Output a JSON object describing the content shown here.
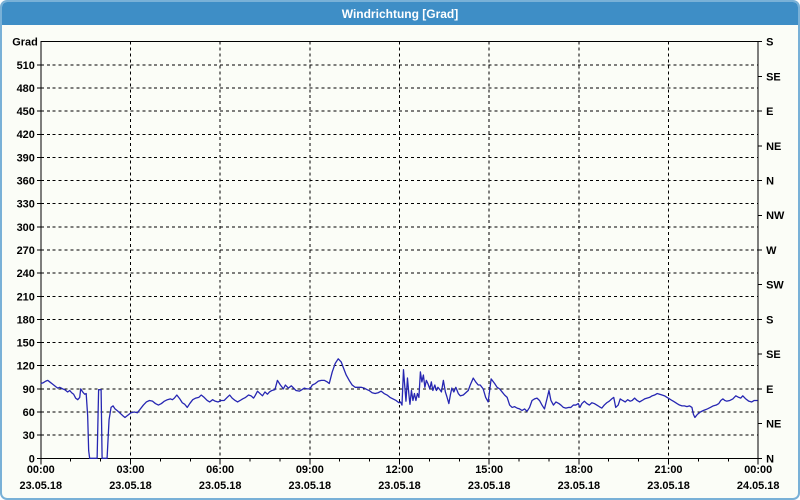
{
  "window": {
    "title": "Windrichtung [Grad]"
  },
  "colors": {
    "titlebar": "#3e8ec6",
    "title_text": "#ffffff",
    "window_border": "#79b1d7",
    "background": "#fbfdf7",
    "grid": "#000000",
    "series_line": "#2626b2"
  },
  "chart_data": {
    "type": "line",
    "title": "Windrichtung [Grad]",
    "grid": "dashed-black",
    "legend": "none",
    "x_axis": {
      "min_minutes": 0,
      "max_minutes": 1440,
      "minor_tick_step_minutes": 60,
      "major_ticks": [
        {
          "minutes": 0,
          "time": "00:00",
          "date": "23.05.18"
        },
        {
          "minutes": 180,
          "time": "03:00",
          "date": "23.05.18"
        },
        {
          "minutes": 360,
          "time": "06:00",
          "date": "23.05.18"
        },
        {
          "minutes": 540,
          "time": "09:00",
          "date": "23.05.18"
        },
        {
          "minutes": 720,
          "time": "12:00",
          "date": "23.05.18"
        },
        {
          "minutes": 900,
          "time": "15:00",
          "date": "23.05.18"
        },
        {
          "minutes": 1080,
          "time": "18:00",
          "date": "23.05.18"
        },
        {
          "minutes": 1260,
          "time": "21:00",
          "date": "23.05.18"
        },
        {
          "minutes": 1440,
          "time": "00:00",
          "date": "24.05.18"
        }
      ]
    },
    "y_left": {
      "unit_label": "Grad",
      "min": 0,
      "max": 540,
      "tick_step": 30,
      "tick_values": [
        0,
        30,
        60,
        90,
        120,
        150,
        180,
        210,
        240,
        270,
        300,
        330,
        360,
        390,
        420,
        450,
        480,
        510
      ]
    },
    "y_right": {
      "ticks": [
        {
          "value": 0,
          "label": "N"
        },
        {
          "value": 45,
          "label": "NE"
        },
        {
          "value": 90,
          "label": "E"
        },
        {
          "value": 135,
          "label": "SE"
        },
        {
          "value": 180,
          "label": "S"
        },
        {
          "value": 225,
          "label": "SW"
        },
        {
          "value": 270,
          "label": "W"
        },
        {
          "value": 315,
          "label": "NW"
        },
        {
          "value": 360,
          "label": "N"
        },
        {
          "value": 405,
          "label": "NE"
        },
        {
          "value": 450,
          "label": "E"
        },
        {
          "value": 495,
          "label": "SE"
        },
        {
          "value": 540,
          "label": "S"
        }
      ]
    },
    "series": [
      {
        "name": "Windrichtung",
        "color": "#2626b2",
        "points": [
          [
            0,
            97
          ],
          [
            5,
            98
          ],
          [
            10,
            100
          ],
          [
            14,
            101
          ],
          [
            18,
            99
          ],
          [
            24,
            96
          ],
          [
            30,
            93
          ],
          [
            34,
            91
          ],
          [
            38,
            92
          ],
          [
            44,
            90
          ],
          [
            48,
            89
          ],
          [
            54,
            86
          ],
          [
            58,
            88
          ],
          [
            62,
            85
          ],
          [
            66,
            83
          ],
          [
            70,
            78
          ],
          [
            74,
            76
          ],
          [
            78,
            79
          ],
          [
            80,
            90
          ],
          [
            84,
            86
          ],
          [
            88,
            83
          ],
          [
            91,
            84
          ],
          [
            94,
            55
          ],
          [
            96,
            10
          ],
          [
            98,
            0
          ],
          [
            113,
            0
          ],
          [
            116,
            89
          ],
          [
            121,
            89
          ],
          [
            123,
            0
          ],
          [
            133,
            0
          ],
          [
            137,
            50
          ],
          [
            141,
            66
          ],
          [
            145,
            68
          ],
          [
            149,
            64
          ],
          [
            155,
            61
          ],
          [
            160,
            58
          ],
          [
            165,
            55
          ],
          [
            169,
            53
          ],
          [
            175,
            56
          ],
          [
            181,
            59
          ],
          [
            188,
            60
          ],
          [
            194,
            59
          ],
          [
            200,
            64
          ],
          [
            206,
            69
          ],
          [
            212,
            73
          ],
          [
            218,
            75
          ],
          [
            224,
            74
          ],
          [
            230,
            71
          ],
          [
            236,
            69
          ],
          [
            242,
            71
          ],
          [
            248,
            74
          ],
          [
            254,
            76
          ],
          [
            260,
            77
          ],
          [
            264,
            76
          ],
          [
            268,
            78
          ],
          [
            273,
            82
          ],
          [
            279,
            77
          ],
          [
            284,
            72
          ],
          [
            289,
            70
          ],
          [
            294,
            66
          ],
          [
            299,
            71
          ],
          [
            305,
            76
          ],
          [
            311,
            78
          ],
          [
            317,
            79
          ],
          [
            322,
            82
          ],
          [
            328,
            79
          ],
          [
            334,
            75
          ],
          [
            339,
            73
          ],
          [
            345,
            76
          ],
          [
            350,
            74
          ],
          [
            356,
            73
          ],
          [
            362,
            75
          ],
          [
            368,
            75
          ],
          [
            374,
            79
          ],
          [
            379,
            82
          ],
          [
            384,
            78
          ],
          [
            390,
            75
          ],
          [
            395,
            73
          ],
          [
            400,
            75
          ],
          [
            405,
            77
          ],
          [
            411,
            79
          ],
          [
            417,
            82
          ],
          [
            422,
            81
          ],
          [
            427,
            78
          ],
          [
            430,
            81
          ],
          [
            435,
            87
          ],
          [
            440,
            84
          ],
          [
            445,
            81
          ],
          [
            450,
            86
          ],
          [
            455,
            83
          ],
          [
            459,
            86
          ],
          [
            464,
            88
          ],
          [
            470,
            89
          ],
          [
            475,
            101
          ],
          [
            481,
            95
          ],
          [
            487,
            90
          ],
          [
            491,
            95
          ],
          [
            497,
            91
          ],
          [
            503,
            94
          ],
          [
            509,
            90
          ],
          [
            512,
            88
          ],
          [
            519,
            87
          ],
          [
            524,
            89
          ],
          [
            529,
            91
          ],
          [
            534,
            90
          ],
          [
            540,
            90
          ],
          [
            545,
            95
          ],
          [
            551,
            97
          ],
          [
            557,
            100
          ],
          [
            563,
            101
          ],
          [
            569,
            101
          ],
          [
            575,
            99
          ],
          [
            579,
            97
          ],
          [
            585,
            112
          ],
          [
            591,
            123
          ],
          [
            597,
            129
          ],
          [
            603,
            125
          ],
          [
            607,
            118
          ],
          [
            613,
            108
          ],
          [
            619,
            101
          ],
          [
            625,
            95
          ],
          [
            631,
            92
          ],
          [
            637,
            92
          ],
          [
            643,
            92
          ],
          [
            649,
            91
          ],
          [
            655,
            89
          ],
          [
            659,
            88
          ],
          [
            665,
            85
          ],
          [
            671,
            84
          ],
          [
            677,
            85
          ],
          [
            683,
            87
          ],
          [
            689,
            84
          ],
          [
            695,
            82
          ],
          [
            701,
            79
          ],
          [
            707,
            77
          ],
          [
            713,
            75
          ],
          [
            719,
            72
          ],
          [
            722,
            73
          ],
          [
            725,
            69
          ],
          [
            728,
            115
          ],
          [
            731,
            90
          ],
          [
            733,
            74
          ],
          [
            736,
            104
          ],
          [
            739,
            82
          ],
          [
            741,
            70
          ],
          [
            744,
            88
          ],
          [
            747,
            75
          ],
          [
            750,
            84
          ],
          [
            753,
            75
          ],
          [
            756,
            84
          ],
          [
            759,
            79
          ],
          [
            762,
            112
          ],
          [
            765,
            99
          ],
          [
            768,
            108
          ],
          [
            771,
            92
          ],
          [
            774,
            101
          ],
          [
            777,
            97
          ],
          [
            781,
            90
          ],
          [
            784,
            99
          ],
          [
            787,
            88
          ],
          [
            791,
            95
          ],
          [
            794,
            88
          ],
          [
            797,
            92
          ],
          [
            801,
            89
          ],
          [
            804,
            86
          ],
          [
            808,
            101
          ],
          [
            812,
            86
          ],
          [
            815,
            80
          ],
          [
            819,
            71
          ],
          [
            822,
            82
          ],
          [
            825,
            91
          ],
          [
            829,
            86
          ],
          [
            833,
            92
          ],
          [
            838,
            84
          ],
          [
            842,
            81
          ],
          [
            848,
            82
          ],
          [
            853,
            85
          ],
          [
            858,
            88
          ],
          [
            862,
            95
          ],
          [
            868,
            104
          ],
          [
            873,
            99
          ],
          [
            878,
            95
          ],
          [
            882,
            95
          ],
          [
            888,
            90
          ],
          [
            893,
            79
          ],
          [
            898,
            73
          ],
          [
            901,
            88
          ],
          [
            904,
            103
          ],
          [
            911,
            97
          ],
          [
            916,
            92
          ],
          [
            921,
            90
          ],
          [
            926,
            86
          ],
          [
            931,
            82
          ],
          [
            936,
            79
          ],
          [
            941,
            69
          ],
          [
            946,
            66
          ],
          [
            951,
            67
          ],
          [
            956,
            65
          ],
          [
            961,
            64
          ],
          [
            966,
            62
          ],
          [
            971,
            64
          ],
          [
            976,
            61
          ],
          [
            981,
            66
          ],
          [
            986,
            75
          ],
          [
            991,
            77
          ],
          [
            996,
            78
          ],
          [
            1001,
            75
          ],
          [
            1006,
            69
          ],
          [
            1011,
            64
          ],
          [
            1016,
            77
          ],
          [
            1020,
            88
          ],
          [
            1024,
            75
          ],
          [
            1029,
            69
          ],
          [
            1034,
            73
          ],
          [
            1040,
            71
          ],
          [
            1044,
            69
          ],
          [
            1049,
            66
          ],
          [
            1054,
            65
          ],
          [
            1060,
            66
          ],
          [
            1064,
            66
          ],
          [
            1069,
            69
          ],
          [
            1074,
            69
          ],
          [
            1079,
            71
          ],
          [
            1082,
            66
          ],
          [
            1086,
            71
          ],
          [
            1091,
            74
          ],
          [
            1096,
            71
          ],
          [
            1101,
            69
          ],
          [
            1106,
            72
          ],
          [
            1111,
            71
          ],
          [
            1116,
            69
          ],
          [
            1121,
            67
          ],
          [
            1126,
            65
          ],
          [
            1131,
            69
          ],
          [
            1136,
            72
          ],
          [
            1141,
            74
          ],
          [
            1146,
            77
          ],
          [
            1150,
            79
          ],
          [
            1154,
            66
          ],
          [
            1159,
            69
          ],
          [
            1163,
            77
          ],
          [
            1168,
            75
          ],
          [
            1173,
            73
          ],
          [
            1178,
            76
          ],
          [
            1183,
            74
          ],
          [
            1187,
            75
          ],
          [
            1192,
            78
          ],
          [
            1197,
            75
          ],
          [
            1202,
            73
          ],
          [
            1207,
            75
          ],
          [
            1212,
            77
          ],
          [
            1217,
            78
          ],
          [
            1222,
            79
          ],
          [
            1227,
            81
          ],
          [
            1232,
            82
          ],
          [
            1237,
            84
          ],
          [
            1242,
            83
          ],
          [
            1247,
            82
          ],
          [
            1252,
            81
          ],
          [
            1257,
            79
          ],
          [
            1262,
            77
          ],
          [
            1267,
            75
          ],
          [
            1272,
            73
          ],
          [
            1277,
            71
          ],
          [
            1282,
            69
          ],
          [
            1287,
            68
          ],
          [
            1292,
            68
          ],
          [
            1297,
            67
          ],
          [
            1302,
            68
          ],
          [
            1307,
            66
          ],
          [
            1310,
            57
          ],
          [
            1313,
            53
          ],
          [
            1318,
            57
          ],
          [
            1324,
            60
          ],
          [
            1330,
            62
          ],
          [
            1338,
            64
          ],
          [
            1344,
            66
          ],
          [
            1350,
            68
          ],
          [
            1356,
            69
          ],
          [
            1361,
            71
          ],
          [
            1365,
            75
          ],
          [
            1369,
            77
          ],
          [
            1373,
            75
          ],
          [
            1377,
            74
          ],
          [
            1383,
            75
          ],
          [
            1389,
            77
          ],
          [
            1395,
            81
          ],
          [
            1401,
            79
          ],
          [
            1405,
            78
          ],
          [
            1409,
            81
          ],
          [
            1415,
            77
          ],
          [
            1421,
            74
          ],
          [
            1427,
            73
          ],
          [
            1432,
            75
          ],
          [
            1439,
            75
          ]
        ]
      }
    ]
  }
}
